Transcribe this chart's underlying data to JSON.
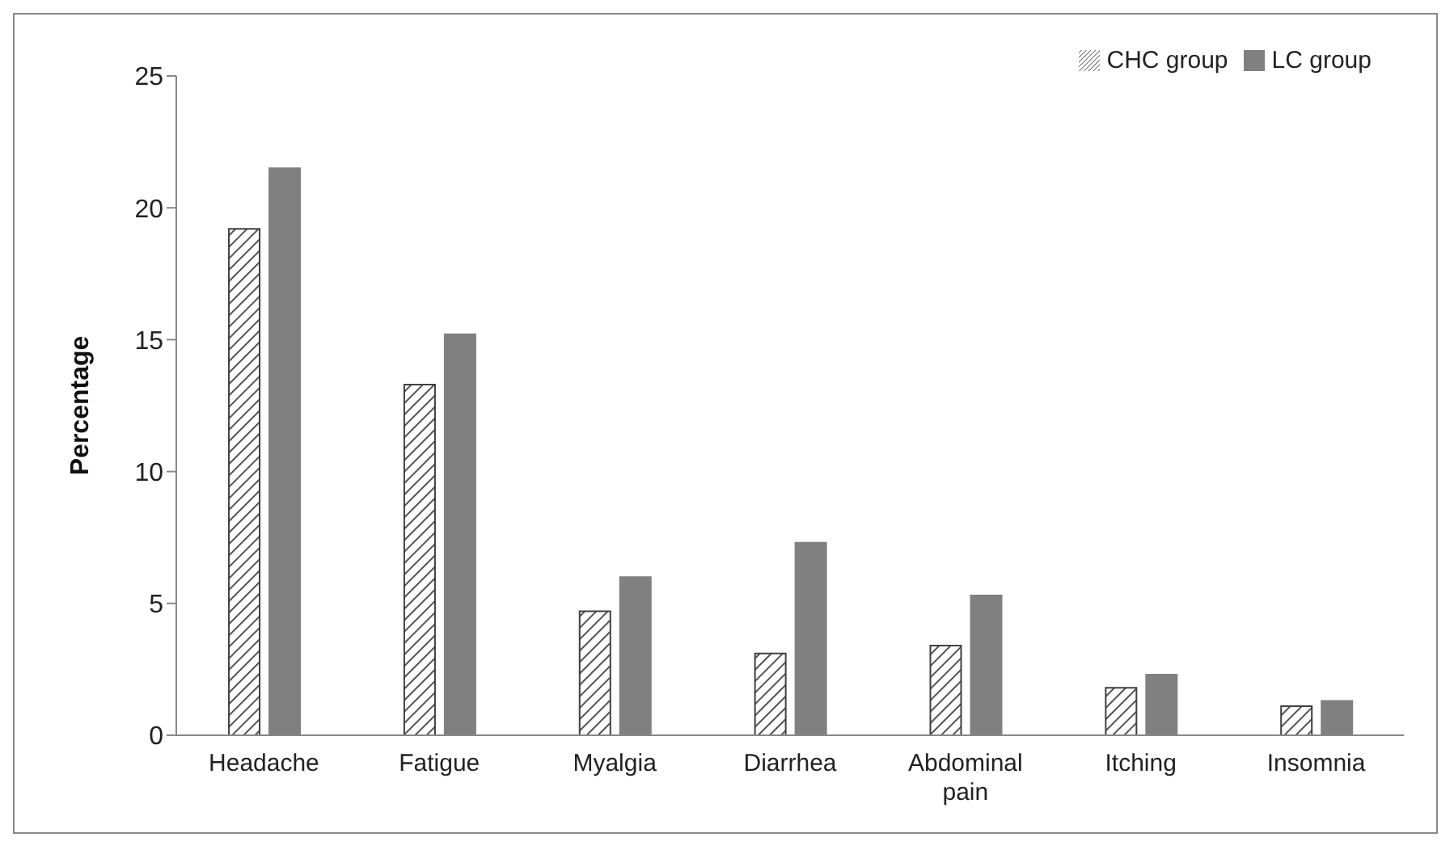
{
  "chart_data": {
    "type": "bar",
    "ylabel": "Percentage",
    "categories": [
      "Headache",
      "Fatigue",
      "Myalgia",
      "Diarrhea",
      "Abdominal pain",
      "Itching",
      "Insomnia"
    ],
    "series": [
      {
        "name": "CHC group",
        "color": "#404040",
        "values": [
          19.2,
          13.3,
          4.7,
          3.1,
          3.4,
          1.8,
          1.1
        ]
      },
      {
        "name": "LC group",
        "color": "#808080",
        "values": [
          21.5,
          15.2,
          6.0,
          7.3,
          5.3,
          2.3,
          1.3
        ]
      }
    ],
    "ylim": [
      0,
      25
    ],
    "yticks": [
      0,
      5,
      10,
      15,
      20,
      25
    ],
    "grid": false,
    "legend": "top right"
  }
}
